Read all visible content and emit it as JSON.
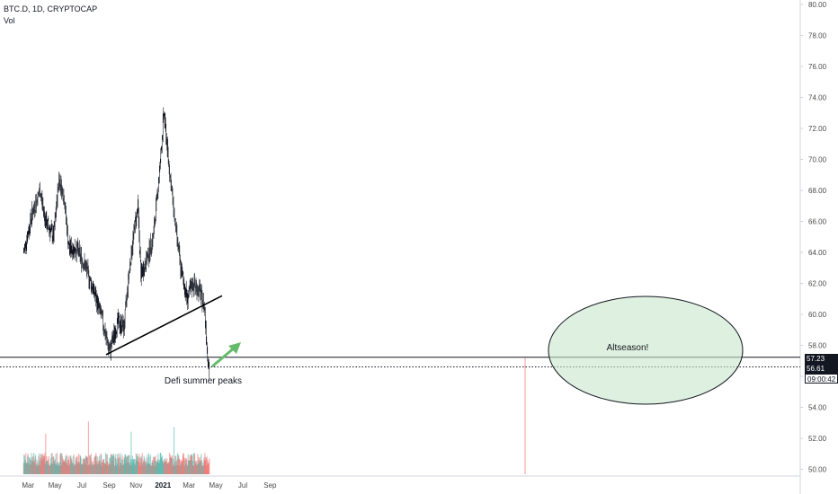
{
  "header": {
    "symbol": "BTC.D, 1D, CRYPTOCAP",
    "volume_label": "Vol"
  },
  "price_tags": {
    "level": "57.23",
    "last": "56.61",
    "countdown": "09:00:42"
  },
  "annotations": {
    "defi": "Defi summer peaks",
    "altseason": "Altseason!"
  },
  "colors": {
    "up": "#26a69a",
    "down": "#ef5350",
    "candle": "#131722",
    "ellipse_fill": "#c8e6c9",
    "arrow": "#66bb6a",
    "axis_text": "#4a4a4a",
    "axis_line": "#d1d4dc"
  },
  "chart_data": {
    "type": "candlestick",
    "y_axis": {
      "min": 50,
      "max": 80,
      "ticks": [
        "80.00",
        "78.00",
        "76.00",
        "74.00",
        "72.00",
        "70.00",
        "68.00",
        "66.00",
        "64.00",
        "62.00",
        "60.00",
        "58.00",
        "56.00",
        "54.00",
        "52.00",
        "50.00"
      ]
    },
    "x_axis": {
      "labels": [
        "Mar",
        "May",
        "Jul",
        "Sep",
        "Nov",
        "2021",
        "Mar",
        "May",
        "Jul",
        "Sep"
      ]
    },
    "price_keypoints": [
      {
        "date": "2020-02-20",
        "value": 64.0
      },
      {
        "date": "2020-03-10",
        "value": 66.5
      },
      {
        "date": "2020-03-28",
        "value": 68.0
      },
      {
        "date": "2020-04-10",
        "value": 66.0
      },
      {
        "date": "2020-04-28",
        "value": 65.0
      },
      {
        "date": "2020-05-10",
        "value": 68.8
      },
      {
        "date": "2020-05-22",
        "value": 67.5
      },
      {
        "date": "2020-06-01",
        "value": 64.3
      },
      {
        "date": "2020-06-20",
        "value": 64.2
      },
      {
        "date": "2020-07-10",
        "value": 63.0
      },
      {
        "date": "2020-07-28",
        "value": 61.5
      },
      {
        "date": "2020-08-15",
        "value": 59.8
      },
      {
        "date": "2020-08-25",
        "value": 58.5
      },
      {
        "date": "2020-09-02",
        "value": 57.6
      },
      {
        "date": "2020-09-20",
        "value": 59.5
      },
      {
        "date": "2020-10-05",
        "value": 59.2
      },
      {
        "date": "2020-10-15",
        "value": 62.5
      },
      {
        "date": "2020-10-28",
        "value": 65.5
      },
      {
        "date": "2020-11-05",
        "value": 67.0
      },
      {
        "date": "2020-11-12",
        "value": 62.5
      },
      {
        "date": "2020-11-25",
        "value": 63.5
      },
      {
        "date": "2020-12-10",
        "value": 65.0
      },
      {
        "date": "2020-12-25",
        "value": 69.5
      },
      {
        "date": "2021-01-03",
        "value": 73.0
      },
      {
        "date": "2021-01-15",
        "value": 69.5
      },
      {
        "date": "2021-01-28",
        "value": 66.0
      },
      {
        "date": "2021-02-10",
        "value": 63.0
      },
      {
        "date": "2021-02-25",
        "value": 61.0
      },
      {
        "date": "2021-03-10",
        "value": 62.0
      },
      {
        "date": "2021-03-25",
        "value": 61.5
      },
      {
        "date": "2021-04-05",
        "value": 60.5
      },
      {
        "date": "2021-04-12",
        "value": 57.5
      },
      {
        "date": "2021-04-16",
        "value": 56.2
      }
    ],
    "trendline": [
      {
        "date": "2020-08-25",
        "value": 57.4
      },
      {
        "date": "2021-05-15",
        "value": 61.2
      }
    ],
    "horizontal_levels": [
      {
        "value": 57.23,
        "style": "solid"
      },
      {
        "value": 56.61,
        "style": "dotted"
      }
    ]
  }
}
